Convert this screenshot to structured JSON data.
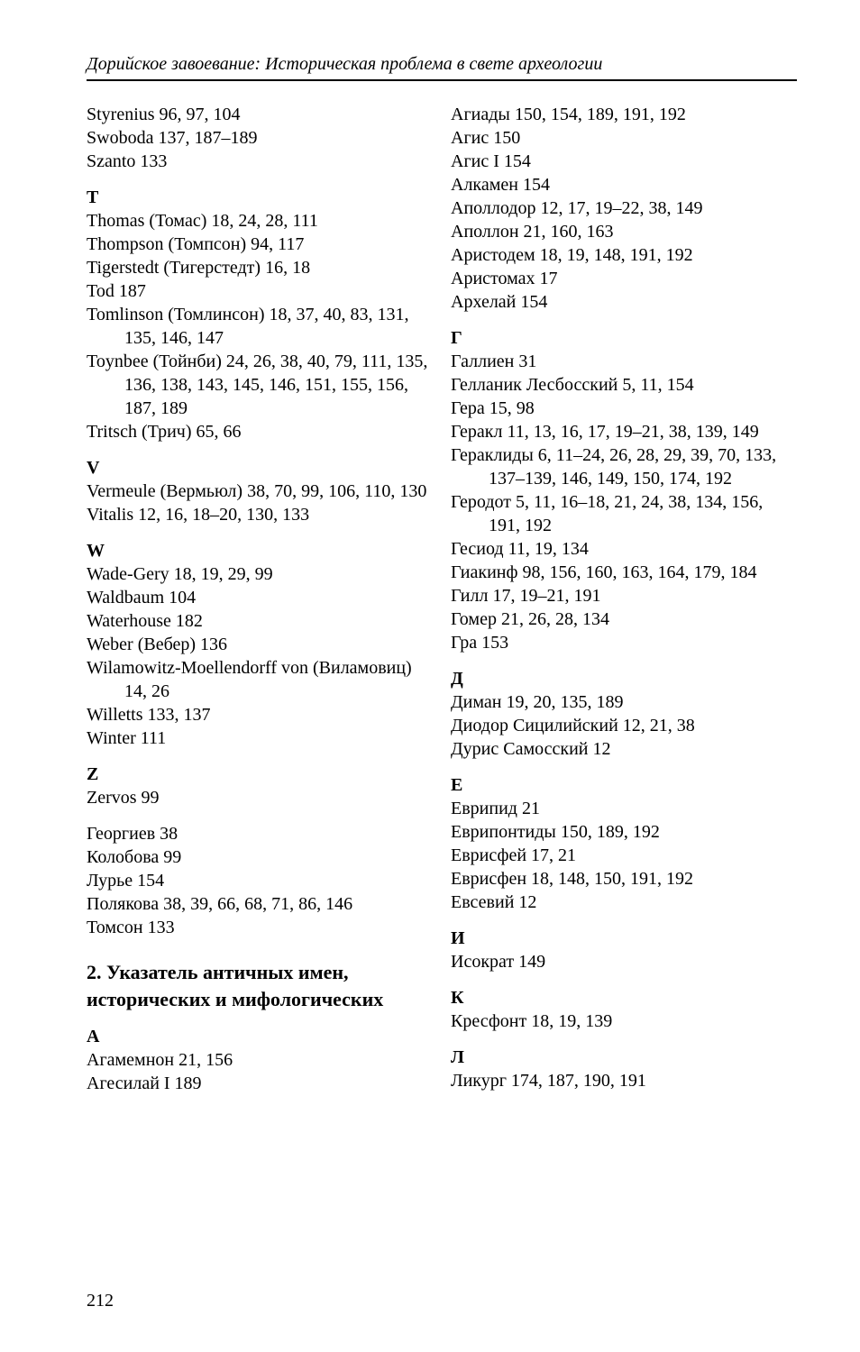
{
  "header": "Дорийское завоевание: Историческая проблема в свете археологии",
  "page_number": "212",
  "left": {
    "pre": [
      "Styrenius  96, 97, 104",
      "Swoboda  137, 187–189",
      "Szanto  133"
    ],
    "T": [
      "Thomas (Томас)  18, 24, 28, 111",
      "Thompson (Томпсон)  94, 117",
      "Tigerstedt (Тигерстедт)  16, 18",
      "Tod  187",
      "Tomlinson (Томлинсон)  18, 37, 40, 83, 131, 135, 146, 147",
      "Toynbee (Тойнби)  24, 26, 38, 40, 79, 111, 135, 136, 138, 143, 145, 146, 151, 155, 156, 187, 189",
      "Tritsch (Трич)  65, 66"
    ],
    "V": [
      "Vermeule (Вермьюл)  38, 70, 99, 106, 110, 130",
      "Vitalis  12, 16, 18–20, 130, 133"
    ],
    "W": [
      "Wade-Gery  18, 19, 29, 99",
      "Waldbaum  104",
      "Waterhouse  182",
      "Weber (Вебер)  136",
      "Wilamowitz-Moellendorff von (Виламовиц)  14, 26",
      "Willetts  133, 137",
      "Winter  111"
    ],
    "Z": [
      "Zervos  99"
    ],
    "russ": [
      "Георгиев  38",
      "Колобова  99",
      "Лурье  154",
      "Полякова  38, 39, 66, 68, 71, 86, 146",
      "Томсон  133"
    ],
    "section2_title": "2. Указатель античных имен, исторических и мифологических",
    "A": [
      "Агамемнон  21, 156",
      "Агесилай I  189"
    ]
  },
  "right": {
    "top": [
      "Агиады  150, 154, 189, 191, 192",
      "Агис  150",
      "Агис I  154",
      "Алкамен  154",
      "Аполлодор  12, 17, 19–22, 38, 149",
      "Аполлон  21, 160, 163",
      "Аристодем  18, 19, 148, 191, 192",
      "Аристомах  17",
      "Архелай  154"
    ],
    "G": [
      "Галлиен  31",
      "Гелланик Лесбосский  5, 11, 154",
      "Гера  15, 98",
      "Геракл  11, 13, 16, 17, 19–21, 38, 139, 149",
      "Гераклиды  6, 11–24, 26, 28, 29, 39, 70, 133, 137–139, 146, 149, 150, 174, 192",
      "Геродот  5, 11, 16–18, 21, 24, 38, 134, 156, 191, 192",
      "Гесиод  11, 19, 134",
      "Гиакинф  98, 156, 160, 163, 164, 179, 184",
      "Гилл  17, 19–21, 191",
      "Гомер  21, 26, 28, 134",
      "Гра  153"
    ],
    "D": [
      "Диман  19, 20, 135, 189",
      "Диодор Сицилийский  12, 21, 38",
      "Дурис Самосский  12"
    ],
    "E": [
      "Еврипид  21",
      "Еврипонтиды  150, 189, 192",
      "Еврисфей  17, 21",
      "Еврисфен  18, 148, 150, 191, 192",
      "Евсевий  12"
    ],
    "I": [
      "Исократ  149"
    ],
    "K": [
      "Кресфонт  18, 19, 139"
    ],
    "L": [
      "Ликург  174, 187, 190, 191"
    ]
  },
  "letters": {
    "T": "T",
    "V": "V",
    "W": "W",
    "Z": "Z",
    "A": "А",
    "G": "Г",
    "D": "Д",
    "E": "Е",
    "I": "И",
    "K": "К",
    "L": "Л"
  }
}
